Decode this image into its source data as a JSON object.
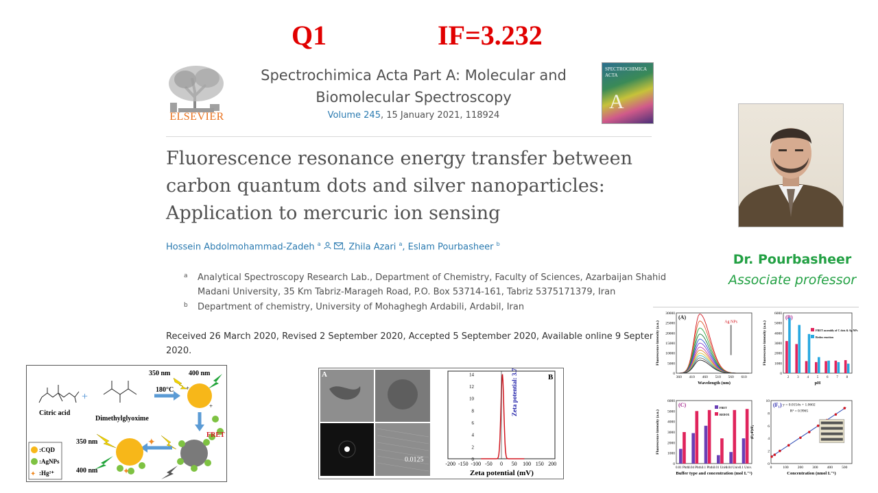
{
  "header": {
    "quartile": "Q1",
    "impact_factor": "IF=3.232"
  },
  "publisher": {
    "name": "ELSEVIER"
  },
  "journal": {
    "line1": "Spectrochimica Acta Part A: Molecular and",
    "line2": "Biomolecular Spectroscopy",
    "volume_link": "Volume 245",
    "volume_rest": ", 15 January 2021, 118924",
    "cover_text": "SPECTROCHIMICA ACTA"
  },
  "article": {
    "title_lines": [
      "Fluorescence resonance energy transfer between",
      "carbon quantum dots and silver nanoparticles:",
      "Application to mercuric ion sensing"
    ],
    "authors": [
      {
        "name": "Hossein Abdolmohammad-Zadeh",
        "sup": "a"
      },
      {
        "name": "Zhila Azari",
        "sup": "a"
      },
      {
        "name": "Eslam Pourbasheer",
        "sup": "b"
      }
    ],
    "affiliations": [
      {
        "sup": "a",
        "line1": "Analytical Spectroscopy Research Lab., Department of Chemistry, Faculty of Sciences, Azarbaijan Shahid",
        "line2": "Madani University, 35 Km Tabriz-Marageh Road, P.O. Box 53714-161, Tabriz 5375171379, Iran"
      },
      {
        "sup": "b",
        "line1": "Department of chemistry, University of Mohaghegh Ardabili, Ardabil, Iran",
        "line2": ""
      }
    ],
    "dates_line1": "Received 26 March 2020, Revised 2 September 2020, Accepted 5 September 2020, Available online 9 September",
    "dates_line2": "2020."
  },
  "profile": {
    "name": "Dr. Pourbasheer",
    "role": "Associate professor"
  },
  "scheme": {
    "citric_acid": "Citric acid",
    "dmg": "Dimethylglyoxime",
    "temp": "180°C",
    "ex1": "350 nm",
    "em1": "400 nm",
    "fret": "FRET",
    "ex2": "350 nm",
    "em2": "400 nm",
    "legend": [
      ":CQD",
      ":AgNPs",
      ":Hg²⁺"
    ]
  },
  "tem": {
    "panel_a": "A",
    "panel_b": "B",
    "scale": "0.0125",
    "zeta_text": "Zeta potential: 3.7 mV",
    "zeta_xlabel": "Zeta potential (mV)",
    "zeta_xticks": [
      "-200",
      "-150",
      "-100",
      "-50",
      "0",
      "50",
      "100",
      "150",
      "200"
    ],
    "zeta_yticks": [
      "14",
      "12",
      "10",
      "8",
      "6",
      "4",
      "2",
      "0"
    ]
  },
  "chart_data": [
    {
      "type": "line",
      "panel": "(A)",
      "xlabel": "Wavelength (nm)",
      "ylabel": "Fluorescence intensity (a.u.)",
      "x_ticks": [
        "360",
        "410",
        "460",
        "510",
        "560",
        "610"
      ],
      "y_ticks": [
        "30000",
        "25000",
        "20000",
        "15000",
        "10000",
        "5000",
        "0"
      ],
      "annotation": "Ag NPs",
      "xlim": [
        350,
        640
      ],
      "ylim": [
        0,
        30000
      ],
      "peak_x": 440,
      "series_peaks": [
        29500,
        26000,
        22500,
        19500,
        17000,
        15000,
        13000,
        11500,
        10000,
        8800,
        7600,
        6500
      ]
    },
    {
      "type": "bar",
      "panel": "(B)",
      "xlabel": "pH",
      "ylabel": "Fluorescence intensity (a.u.)",
      "categories": [
        "2",
        "3",
        "4",
        "5",
        "6",
        "7",
        "8"
      ],
      "y_ticks": [
        "6000",
        "5000",
        "4000",
        "3000",
        "2000",
        "1000",
        "0"
      ],
      "ylim": [
        0,
        6000
      ],
      "series": [
        {
          "name": "FRET assembly of C dots & Ag NPs",
          "values": [
            3200,
            2900,
            1200,
            1100,
            1200,
            1250,
            1300
          ],
          "color": "#e0245c"
        },
        {
          "name": "Redox reaction",
          "values": [
            5500,
            4800,
            3900,
            1600,
            1250,
            1100,
            950
          ],
          "color": "#29a8e0"
        }
      ]
    },
    {
      "type": "bar",
      "panel": "(C)",
      "xlabel": "Buffer type and concentration (mol L⁻¹)",
      "ylabel": "Fluorescence intensity (a.u.)",
      "categories": [
        "0.01 Phth.",
        "0.04 Phth.",
        "0.1 Phth.",
        "0.01 Univ.",
        "0.04 Univ.",
        "0.1 Univ."
      ],
      "y_ticks": [
        "6000",
        "5000",
        "4000",
        "3000",
        "2000",
        "1000",
        "0"
      ],
      "ylim": [
        0,
        6000
      ],
      "series": [
        {
          "name": "FRET",
          "values": [
            1400,
            2900,
            3600,
            800,
            1100,
            2400
          ],
          "color": "#6a3fb5"
        },
        {
          "name": "REDOX",
          "values": [
            3000,
            5000,
            5100,
            2400,
            5100,
            5200
          ],
          "color": "#e0245c"
        }
      ]
    },
    {
      "type": "scatter",
      "panel": "(F₁)",
      "xlabel": "Concentration (nmol L⁻¹)",
      "ylabel": "(F₀-F)/F₀",
      "equation": "y = 0.0154x + 1.0602",
      "r2": "R² = 0.9965",
      "x_ticks": [
        "0",
        "100",
        "200",
        "300",
        "400",
        "500"
      ],
      "y_ticks": [
        "10",
        "8",
        "6",
        "4",
        "2",
        "0"
      ],
      "xlim": [
        0,
        550
      ],
      "ylim": [
        0,
        10
      ],
      "x": [
        5,
        25,
        60,
        120,
        200,
        260,
        320,
        380,
        440,
        500
      ],
      "y": [
        1.1,
        1.4,
        2.0,
        2.9,
        4.1,
        5.0,
        6.0,
        6.9,
        7.8,
        8.8
      ]
    }
  ]
}
